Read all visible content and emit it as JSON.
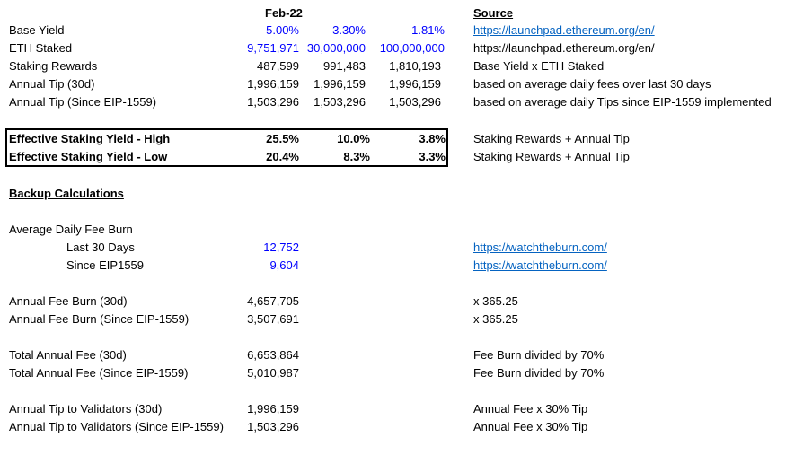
{
  "colors": {
    "input_blue": "#0000ff",
    "link_blue": "#0563c1",
    "text": "#000000"
  },
  "header": {
    "period": "Feb-22",
    "source_heading": "Source"
  },
  "rows": {
    "base_yield": {
      "label": "Base Yield",
      "values": [
        "5.00%",
        "3.30%",
        "1.81%"
      ],
      "source": "https://launchpad.ethereum.org/en/"
    },
    "eth_staked": {
      "label": "ETH Staked",
      "values": [
        "9,751,971",
        "30,000,000",
        "100,000,000"
      ],
      "source": "https://launchpad.ethereum.org/en/"
    },
    "staking_rewards": {
      "label": "Staking Rewards",
      "values": [
        "487,599",
        "991,483",
        "1,810,193"
      ],
      "source": "Base Yield x ETH Staked"
    },
    "annual_tip_30d": {
      "label": "Annual Tip (30d)",
      "values": [
        "1,996,159",
        "1,996,159",
        "1,996,159"
      ],
      "source": "based on average daily fees over last 30 days"
    },
    "annual_tip_eip": {
      "label": "Annual Tip (Since EIP-1559)",
      "values": [
        "1,503,296",
        "1,503,296",
        "1,503,296"
      ],
      "source": "based on average daily Tips since EIP-1559 implemented"
    }
  },
  "effective": {
    "high": {
      "label": "Effective Staking Yield - High",
      "values": [
        "25.5%",
        "10.0%",
        "3.8%"
      ],
      "source": "Staking Rewards + Annual Tip"
    },
    "low": {
      "label": "Effective Staking Yield - Low",
      "values": [
        "20.4%",
        "8.3%",
        "3.3%"
      ],
      "source": "Staking Rewards + Annual Tip"
    }
  },
  "backup": {
    "title": "Backup Calculations",
    "avg_daily_fee_burn": "Average Daily Fee Burn",
    "last_30": {
      "label": "Last 30 Days",
      "value": "12,752",
      "source": "https://watchtheburn.com/"
    },
    "since_eip": {
      "label": "Since EIP1559",
      "value": "9,604",
      "source": "https://watchtheburn.com/"
    },
    "fee_burn_30d": {
      "label": "Annual Fee Burn (30d)",
      "value": "4,657,705",
      "source": "x 365.25"
    },
    "fee_burn_eip": {
      "label": "Annual Fee Burn (Since EIP-1559)",
      "value": "3,507,691",
      "source": "x 365.25"
    },
    "total_fee_30d": {
      "label": "Total Annual Fee (30d)",
      "value": "6,653,864",
      "source": "Fee Burn divided by 70%"
    },
    "total_fee_eip": {
      "label": "Total Annual Fee (Since EIP-1559)",
      "value": "5,010,987",
      "source": "Fee Burn divided by 70%"
    },
    "tip_30d": {
      "label": "Annual Tip to Validators (30d)",
      "value": "1,996,159",
      "source": "Annual Fee x 30% Tip"
    },
    "tip_eip": {
      "label": "Annual Tip to Validators (Since EIP-1559)",
      "value": "1,503,296",
      "source": "Annual Fee x 30% Tip"
    }
  }
}
